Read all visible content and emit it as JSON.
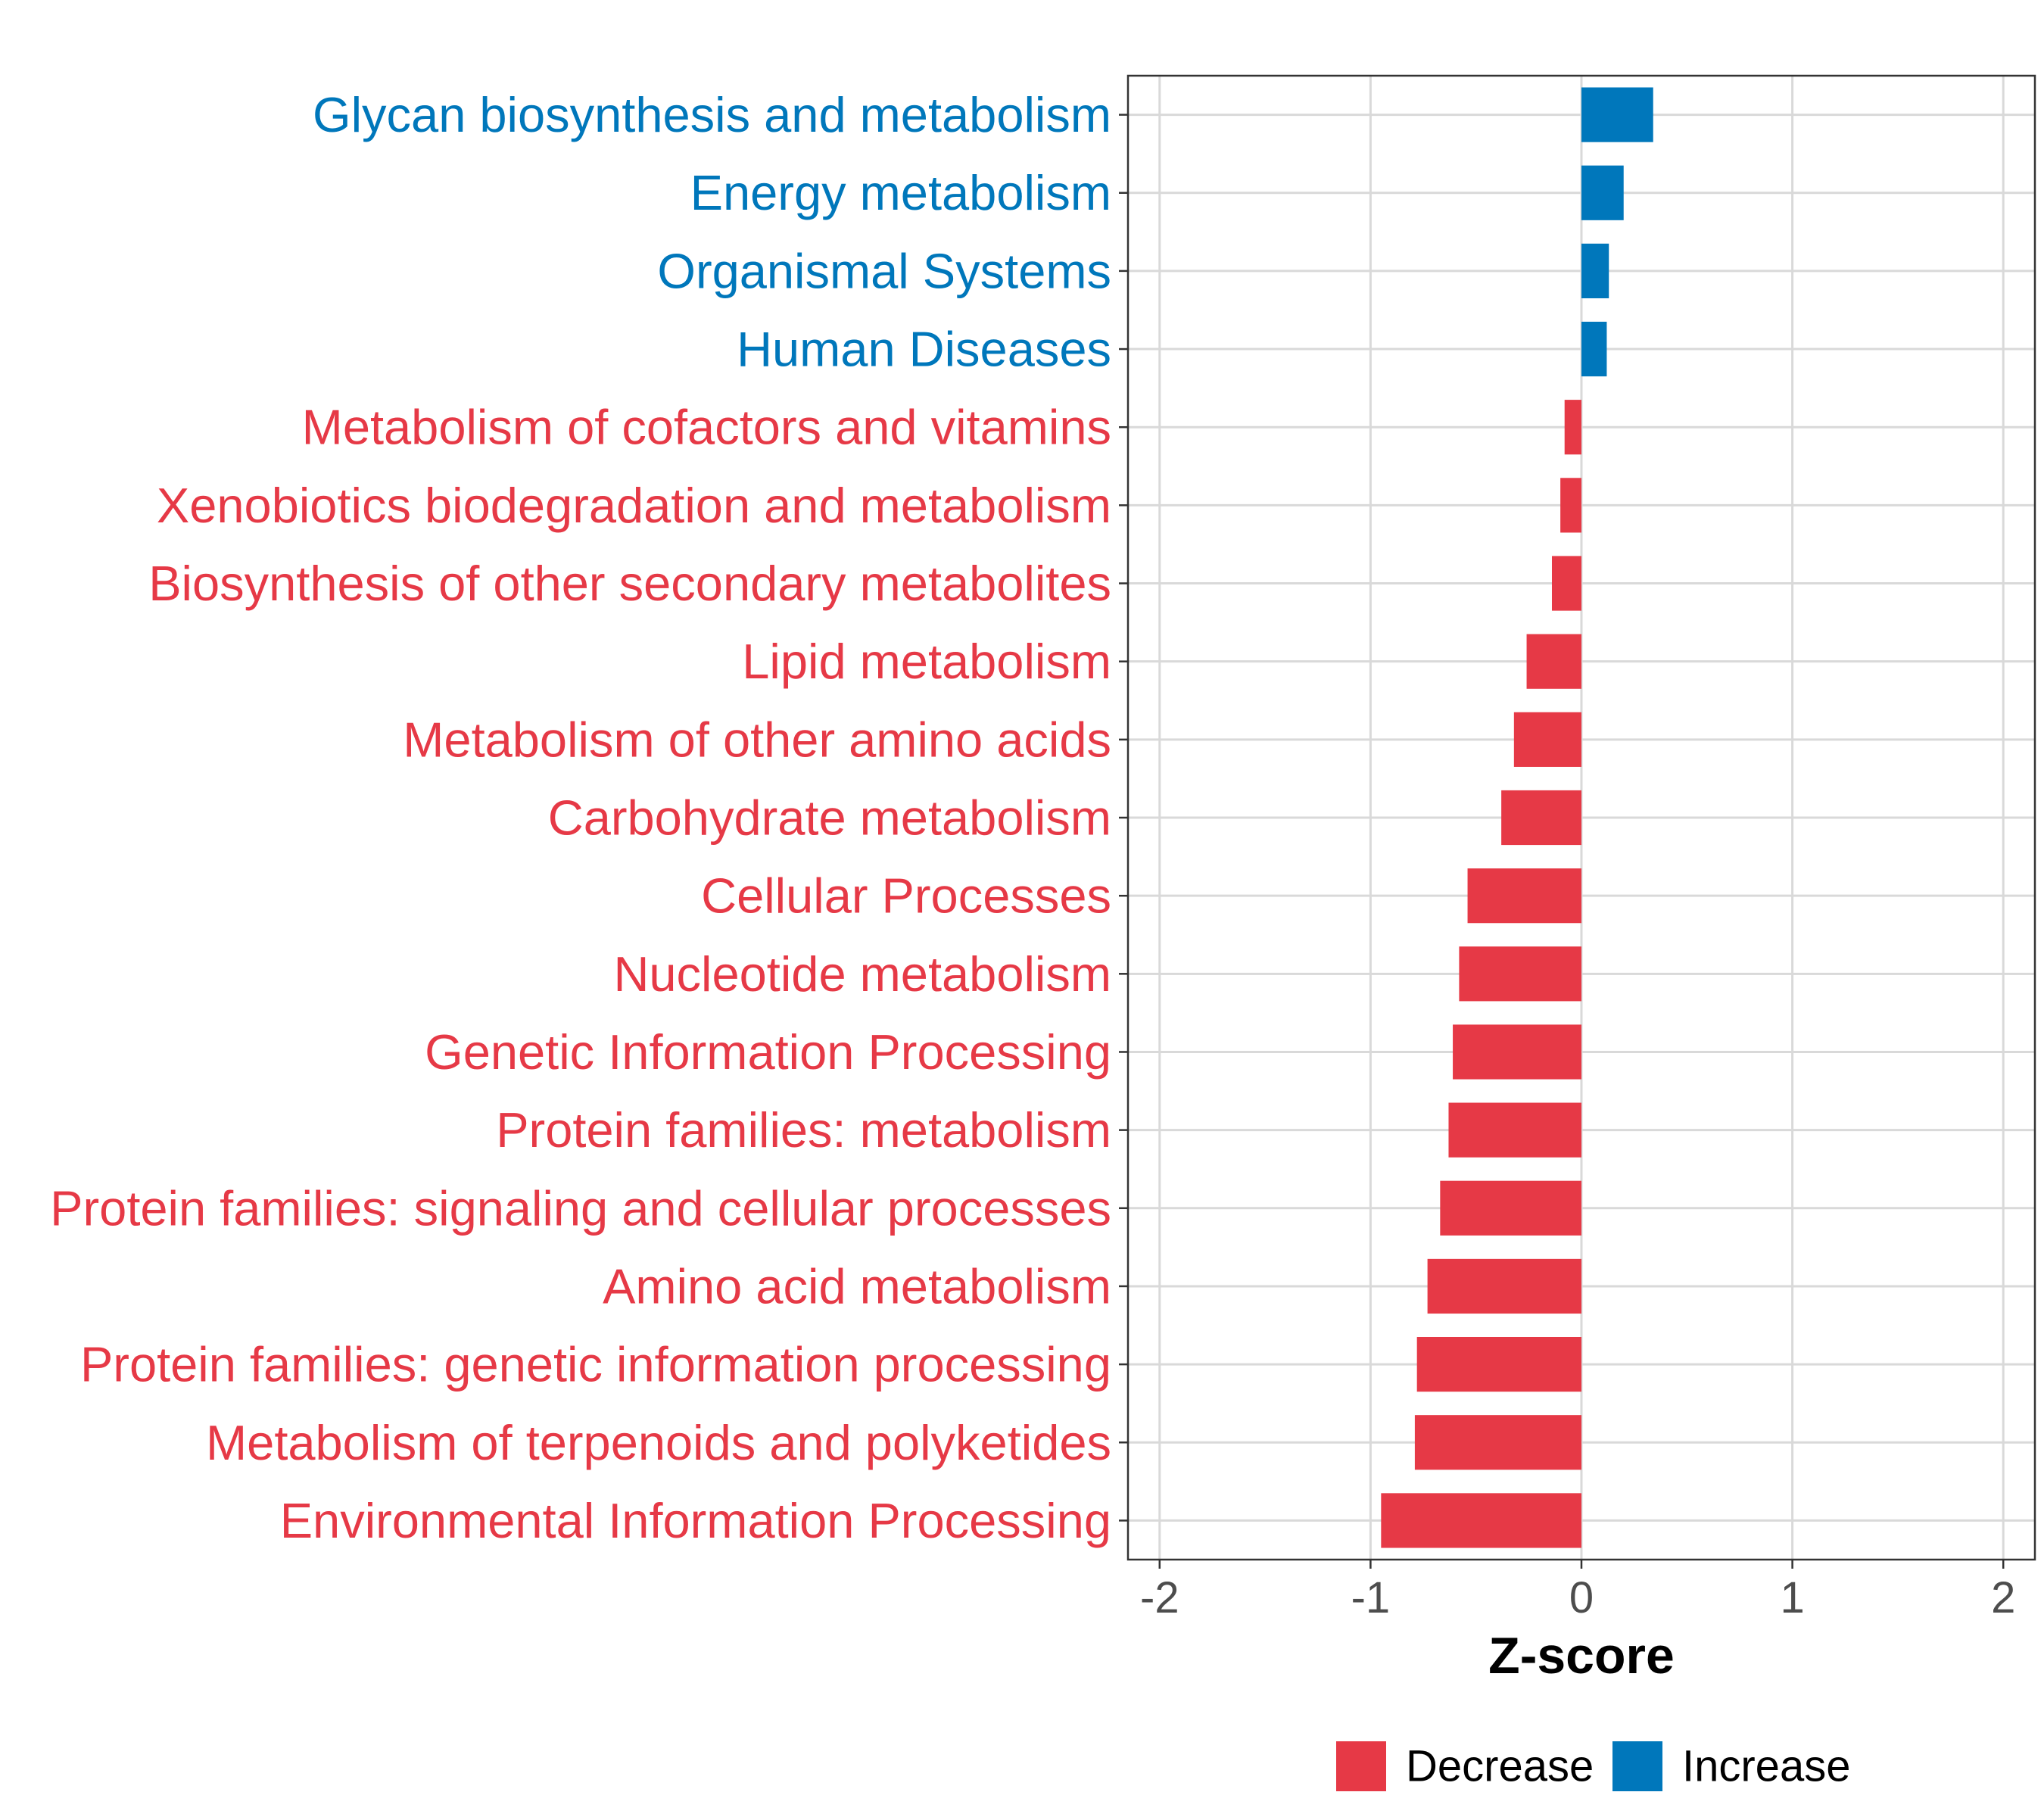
{
  "chart_data": {
    "type": "bar",
    "orientation": "horizontal",
    "title": "",
    "xlabel": "Z-score",
    "ylabel": "",
    "xlim": [
      -2.15,
      2.15
    ],
    "xticks": [
      -2,
      -1,
      0,
      1,
      2
    ],
    "xtick_labels": [
      "-2",
      "-1",
      "0",
      "1",
      "2"
    ],
    "grid": true,
    "legend_position": "bottom",
    "colors": {
      "Decrease": "#e63946",
      "Increase": "#0077bb"
    },
    "legend": [
      {
        "name": "Decrease",
        "color": "#e63946"
      },
      {
        "name": "Increase",
        "color": "#0077bb"
      }
    ],
    "categories": [
      "Glycan biosynthesis and metabolism",
      "Energy metabolism",
      "Organismal Systems",
      "Human Diseases",
      "Metabolism of cofactors and vitamins",
      "Xenobiotics biodegradation and metabolism",
      "Biosynthesis of other secondary metabolites",
      "Lipid metabolism",
      "Metabolism of other amino acids",
      "Carbohydrate metabolism",
      "Cellular Processes",
      "Nucleotide metabolism",
      "Genetic Information Processing",
      "Protein families: metabolism",
      "Protein families: signaling and cellular processes",
      "Amino acid metabolism",
      "Protein families: genetic information processing",
      "Metabolism of terpenoids and polyketides",
      "Environmental Information Processing"
    ],
    "values": [
      0.34,
      0.2,
      0.13,
      0.12,
      -0.08,
      -0.1,
      -0.14,
      -0.26,
      -0.32,
      -0.38,
      -0.54,
      -0.58,
      -0.61,
      -0.63,
      -0.67,
      -0.73,
      -0.78,
      -0.79,
      -0.95
    ],
    "groups": [
      "Increase",
      "Increase",
      "Increase",
      "Increase",
      "Decrease",
      "Decrease",
      "Decrease",
      "Decrease",
      "Decrease",
      "Decrease",
      "Decrease",
      "Decrease",
      "Decrease",
      "Decrease",
      "Decrease",
      "Decrease",
      "Decrease",
      "Decrease",
      "Decrease"
    ]
  }
}
